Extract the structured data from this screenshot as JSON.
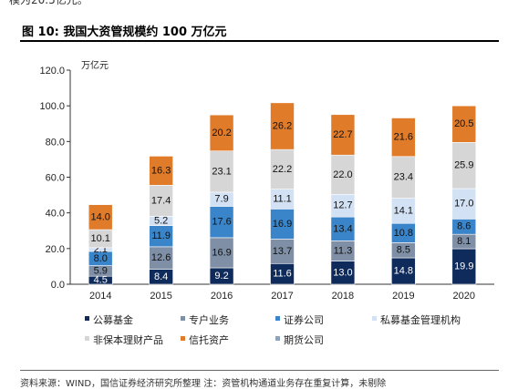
{
  "page": {
    "top_fragment": "模为20.5亿元。",
    "figure_title": "图 10:  我国大资管规模约 100 万亿元",
    "source_note": "资料来源：WIND，国信证券经济研究所整理  注：资管机构通道业务存在重复计算，未剔除"
  },
  "chart_data": {
    "type": "bar",
    "stacked": true,
    "title": "",
    "xlabel": "",
    "ylabel": "万亿元",
    "ylim": [
      0,
      120
    ],
    "yticks": [
      "0.0",
      "20.0",
      "40.0",
      "60.0",
      "80.0",
      "100.0",
      "120.0"
    ],
    "grid": false,
    "legend_position": "bottom",
    "categories": [
      "2014",
      "2015",
      "2016",
      "2017",
      "2018",
      "2019",
      "2020"
    ],
    "series": [
      {
        "name": "公募基金",
        "color": "#0f2b5b",
        "label_color": "#ffffff",
        "values": [
          4.5,
          8.4,
          9.2,
          11.6,
          13.0,
          14.8,
          19.9
        ]
      },
      {
        "name": "专户业务",
        "color": "#7f8fa6",
        "label_color": "#111111",
        "values": [
          5.9,
          12.6,
          16.9,
          13.7,
          11.3,
          8.5,
          8.1
        ]
      },
      {
        "name": "证券公司",
        "color": "#3a85c9",
        "label_color": "#111111",
        "values": [
          8.0,
          11.9,
          17.6,
          16.9,
          13.4,
          10.8,
          8.6
        ]
      },
      {
        "name": "私募基金管理机构",
        "color": "#d2e1f3",
        "label_color": "#111111",
        "values": [
          2.1,
          5.2,
          7.9,
          11.1,
          12.7,
          14.1,
          17.0
        ]
      },
      {
        "name": "非保本理财产品",
        "color": "#d6d6d6",
        "label_color": "#111111",
        "values": [
          10.1,
          17.4,
          23.1,
          22.2,
          22.0,
          23.4,
          25.9
        ]
      },
      {
        "name": "信托资产",
        "color": "#e07b2a",
        "label_color": "#111111",
        "values": [
          14.0,
          16.3,
          20.2,
          26.2,
          22.7,
          21.6,
          20.5
        ]
      },
      {
        "name": "期货公司",
        "color": "#8fa3b8",
        "label_color": "#111111",
        "values": [
          null,
          null,
          null,
          null,
          null,
          null,
          null
        ]
      }
    ]
  }
}
